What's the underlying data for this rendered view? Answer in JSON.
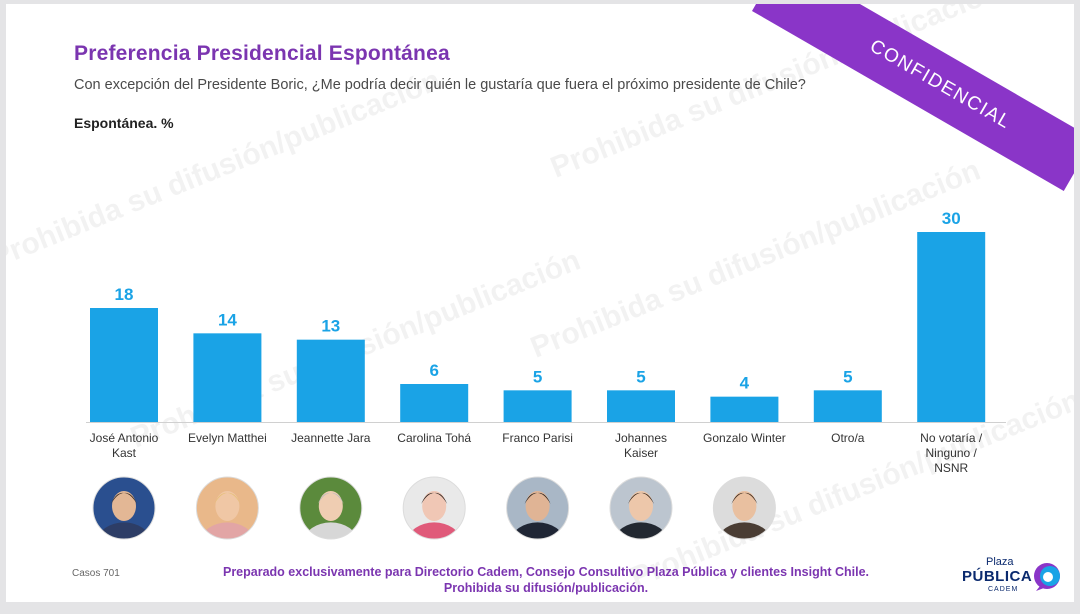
{
  "header": {
    "title": "Preferencia Presidencial Espontánea",
    "question": "Con excepción del Presidente Boric, ¿Me podría decir quién le gustaría que fuera el próximo presidente de Chile?",
    "subtitle": "Espontánea. %"
  },
  "badge": {
    "label": "CONFIDENCIAL",
    "color": "#8a35c8"
  },
  "chart_data": {
    "type": "bar",
    "categories": [
      "José Antonio Kast",
      "Evelyn Matthei",
      "Jeannette Jara",
      "Carolina Tohá",
      "Franco Parisi",
      "Johannes Kaiser",
      "Gonzalo Winter",
      "Otro/a",
      "No votaría / Ninguno / NSNR"
    ],
    "category_lines": [
      [
        "José Antonio",
        "Kast"
      ],
      [
        "Evelyn Matthei"
      ],
      [
        "Jeannette Jara"
      ],
      [
        "Carolina Tohá"
      ],
      [
        "Franco Parisi"
      ],
      [
        "Johannes",
        "Kaiser"
      ],
      [
        "Gonzalo Winter"
      ],
      [
        "Otro/a"
      ],
      [
        "No votaría /",
        "Ninguno /",
        "NSNR"
      ]
    ],
    "values": [
      18,
      14,
      13,
      6,
      5,
      5,
      4,
      5,
      30
    ],
    "ylim": [
      0,
      30
    ],
    "bar_color": "#1aa3e6",
    "grid": false,
    "legend": "none"
  },
  "photos": [
    {
      "name": "kast-photo",
      "bg": "#2a4f8f",
      "skin": "#e3b795",
      "hair": "#3a2e28",
      "shirt": "#2d3d66"
    },
    {
      "name": "matthei-photo",
      "bg": "#e9b88a",
      "skin": "#f0c7a5",
      "hair": "#e7c078",
      "shirt": "#e2a5a5"
    },
    {
      "name": "jara-photo",
      "bg": "#5b8a3c",
      "skin": "#efcdb2",
      "hair": "#bcbcbc",
      "shirt": "#d7d7d7"
    },
    {
      "name": "toha-photo",
      "bg": "#e9e9e9",
      "skin": "#f0c7b5",
      "hair": "#2b2320",
      "shirt": "#e05a7a"
    },
    {
      "name": "parisi-photo",
      "bg": "#a9b7c6",
      "skin": "#e0b495",
      "hair": "#2c2622",
      "shirt": "#1f2635"
    },
    {
      "name": "kaiser-photo",
      "bg": "#bcc5cf",
      "skin": "#edc7aa",
      "hair": "#3a2c22",
      "shirt": "#222831"
    },
    {
      "name": "winter-photo",
      "bg": "#dcdcdc",
      "skin": "#e9c0a0",
      "hair": "#3b2a20",
      "shirt": "#4a3d34"
    }
  ],
  "footer": {
    "casos": "Casos 701",
    "line1": "Preparado exclusivamente para Directorio Cadem, Consejo Consultivo Plaza Pública y clientes Insight Chile.",
    "line2": "Prohibida su difusión/publicación."
  },
  "logo": {
    "line1": "Plaza",
    "line2": "PÚBLICA",
    "line3": "CADEM"
  },
  "watermark": "Prohibida su difusión/publicación"
}
